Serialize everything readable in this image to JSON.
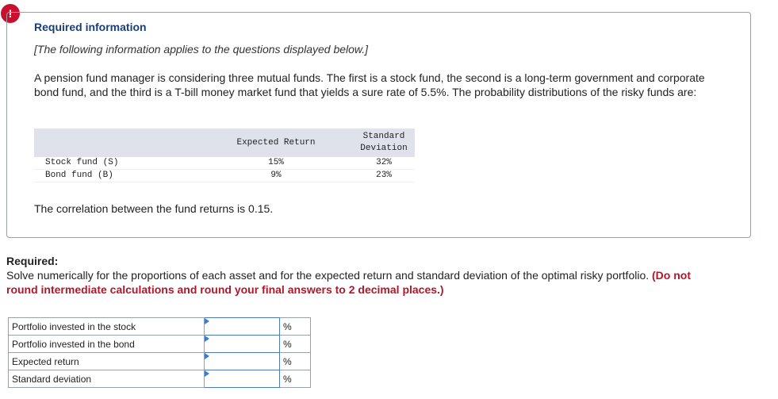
{
  "icon": "!",
  "info": {
    "title": "Required information",
    "note": "[The following information applies to the questions displayed below.]",
    "paragraph": "A pension fund manager is considering three mutual funds. The first is a stock fund, the second is a long-term government and corporate bond fund, and the third is a T-bill money market fund that yields a sure rate of 5.5%. The probability distributions of the risky funds are:",
    "table": {
      "headers": [
        "Expected Return",
        "Standard Deviation"
      ],
      "rows": [
        [
          "Stock fund (S)",
          "15%",
          "32%"
        ],
        [
          "Bond fund (B)",
          "9%",
          "23%"
        ]
      ]
    },
    "correlation": "The correlation between the fund returns is 0.15."
  },
  "required": {
    "label": "Required:",
    "text": "Solve numerically for the proportions of each asset and for the expected return and standard deviation of the optimal risky portfolio.",
    "emphasis": "(Do not round intermediate calculations and round your final answers to 2 decimal places.)"
  },
  "answers": {
    "rows": [
      {
        "label": "Portfolio invested in the stock",
        "unit": "%"
      },
      {
        "label": "Portfolio invested in the bond",
        "unit": "%"
      },
      {
        "label": "Expected return",
        "unit": "%"
      },
      {
        "label": "Standard deviation",
        "unit": "%"
      }
    ]
  }
}
